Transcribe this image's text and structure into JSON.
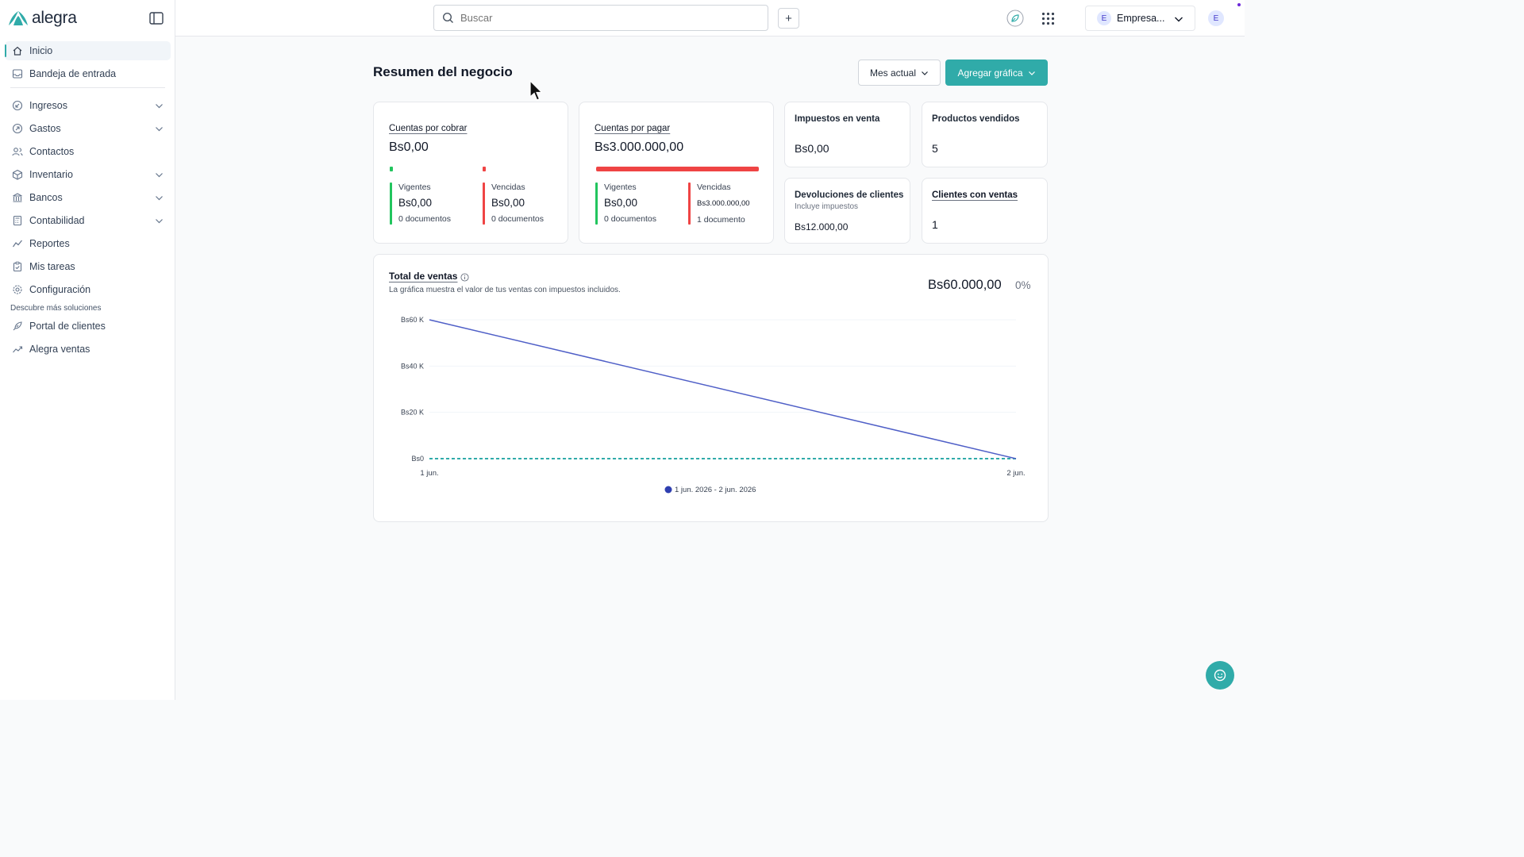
{
  "app": {
    "brand": "alegra",
    "accent": "#30aba9"
  },
  "sidebar": {
    "items": [
      {
        "label": "Inicio",
        "icon": "home-icon",
        "active": true
      },
      {
        "label": "Bandeja de entrada",
        "icon": "inbox-icon"
      },
      {
        "label": "Ingresos",
        "icon": "income-icon",
        "expandable": true
      },
      {
        "label": "Gastos",
        "icon": "expense-icon",
        "expandable": true
      },
      {
        "label": "Contactos",
        "icon": "contacts-icon"
      },
      {
        "label": "Inventario",
        "icon": "inventory-icon",
        "expandable": true
      },
      {
        "label": "Bancos",
        "icon": "bank-icon",
        "expandable": true
      },
      {
        "label": "Contabilidad",
        "icon": "accounting-icon",
        "expandable": true
      },
      {
        "label": "Reportes",
        "icon": "reports-icon"
      },
      {
        "label": "Mis tareas",
        "icon": "tasks-icon"
      },
      {
        "label": "Configuración",
        "icon": "settings-icon"
      }
    ],
    "section_title": "Descubre más soluciones",
    "solutions": [
      {
        "label": "Portal de clientes",
        "icon": "rocket-icon"
      },
      {
        "label": "Alegra ventas",
        "icon": "trend-icon"
      }
    ]
  },
  "topbar": {
    "search_placeholder": "Buscar",
    "plus": "+",
    "company": {
      "initial": "E",
      "name": "Empresa..."
    },
    "user_initial": "E"
  },
  "main": {
    "title": "Resumen del negocio",
    "period_button": "Mes actual",
    "add_chart_button": "Agregar gráfica",
    "receivable": {
      "title": "Cuentas por cobrar",
      "total": "Bs0,00",
      "current": {
        "label": "Vigentes",
        "value": "Bs0,00",
        "docs": "0 documentos"
      },
      "overdue": {
        "label": "Vencidas",
        "value": "Bs0,00",
        "docs": "0 documentos"
      }
    },
    "payable": {
      "title": "Cuentas por pagar",
      "total": "Bs3.000.000,00",
      "overdue_share": 1.0,
      "current": {
        "label": "Vigentes",
        "value": "Bs0,00",
        "docs": "0 documentos"
      },
      "overdue": {
        "label": "Vencidas",
        "value": "Bs3.000.000,00",
        "docs": "1 documento"
      }
    },
    "sales_tax": {
      "title": "Impuestos en venta",
      "value": "Bs0,00"
    },
    "products_sold": {
      "title": "Productos vendidos",
      "value": "5"
    },
    "returns": {
      "title": "Devoluciones de clientes",
      "subtitle": "Incluye impuestos",
      "value": "Bs12.000,00"
    },
    "clients_with_sales": {
      "title": "Clientes con ventas",
      "value": "1"
    },
    "sales_chart": {
      "title": "Total de ventas",
      "description": "La gráfica muestra el valor de tus ventas con impuestos incluidos.",
      "total": "Bs60.000,00",
      "change": "0%"
    }
  },
  "chart_data": {
    "type": "line",
    "title": "Total de ventas",
    "categories": [
      "1 jun.",
      "2 jun."
    ],
    "y_ticks": [
      "Bs0",
      "Bs20 K",
      "Bs40 K",
      "Bs60 K"
    ],
    "ylim": [
      0,
      60000
    ],
    "grid": true,
    "legend": "bottom",
    "series": [
      {
        "name": "1 jun. 2026 - 2 jun. 2026",
        "values": [
          60000,
          0
        ],
        "color": "#4f5fc7",
        "style": "solid"
      },
      {
        "values": [
          0,
          0
        ],
        "color": "#30aba9",
        "style": "dashed"
      }
    ]
  }
}
